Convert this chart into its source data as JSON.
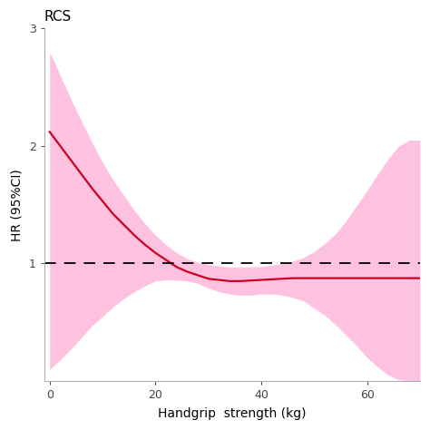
{
  "title": "RCS",
  "xlabel": "Handgrip  strength (kg)",
  "ylabel": "HR (95%CI)",
  "xlim": [
    -1,
    70
  ],
  "ylim": [
    0,
    3
  ],
  "yticks": [
    1,
    2,
    3
  ],
  "xticks": [
    0,
    20,
    40,
    60
  ],
  "hline_y": 1.0,
  "line_color": "#cc0022",
  "ci_color": "#ff85c2",
  "ci_alpha": 0.5,
  "background_color": "#ffffff",
  "x": [
    0,
    2,
    4,
    6,
    8,
    10,
    12,
    14,
    16,
    18,
    20,
    22,
    24,
    26,
    28,
    30,
    32,
    34,
    36,
    38,
    40,
    42,
    44,
    46,
    48,
    50,
    52,
    54,
    56,
    58,
    60,
    62,
    64,
    66,
    68,
    70
  ],
  "y": [
    2.12,
    2.0,
    1.88,
    1.76,
    1.64,
    1.53,
    1.42,
    1.33,
    1.24,
    1.16,
    1.09,
    1.03,
    0.97,
    0.93,
    0.9,
    0.87,
    0.86,
    0.85,
    0.85,
    0.855,
    0.86,
    0.865,
    0.87,
    0.875,
    0.875,
    0.875,
    0.875,
    0.875,
    0.875,
    0.875,
    0.875,
    0.875,
    0.875,
    0.875,
    0.875,
    0.875
  ],
  "ci_upper": [
    2.8,
    2.6,
    2.4,
    2.21,
    2.03,
    1.86,
    1.71,
    1.58,
    1.45,
    1.34,
    1.24,
    1.16,
    1.09,
    1.04,
    1.01,
    0.99,
    0.98,
    0.97,
    0.97,
    0.97,
    0.975,
    0.985,
    1.0,
    1.02,
    1.05,
    1.1,
    1.17,
    1.25,
    1.36,
    1.49,
    1.62,
    1.76,
    1.89,
    2.0,
    2.05,
    2.05
  ],
  "ci_lower": [
    0.1,
    0.18,
    0.27,
    0.37,
    0.47,
    0.55,
    0.63,
    0.7,
    0.76,
    0.81,
    0.85,
    0.86,
    0.86,
    0.85,
    0.83,
    0.79,
    0.76,
    0.74,
    0.73,
    0.73,
    0.74,
    0.74,
    0.73,
    0.71,
    0.68,
    0.62,
    0.56,
    0.48,
    0.39,
    0.3,
    0.2,
    0.12,
    0.05,
    0.01,
    0.0,
    0.0
  ]
}
